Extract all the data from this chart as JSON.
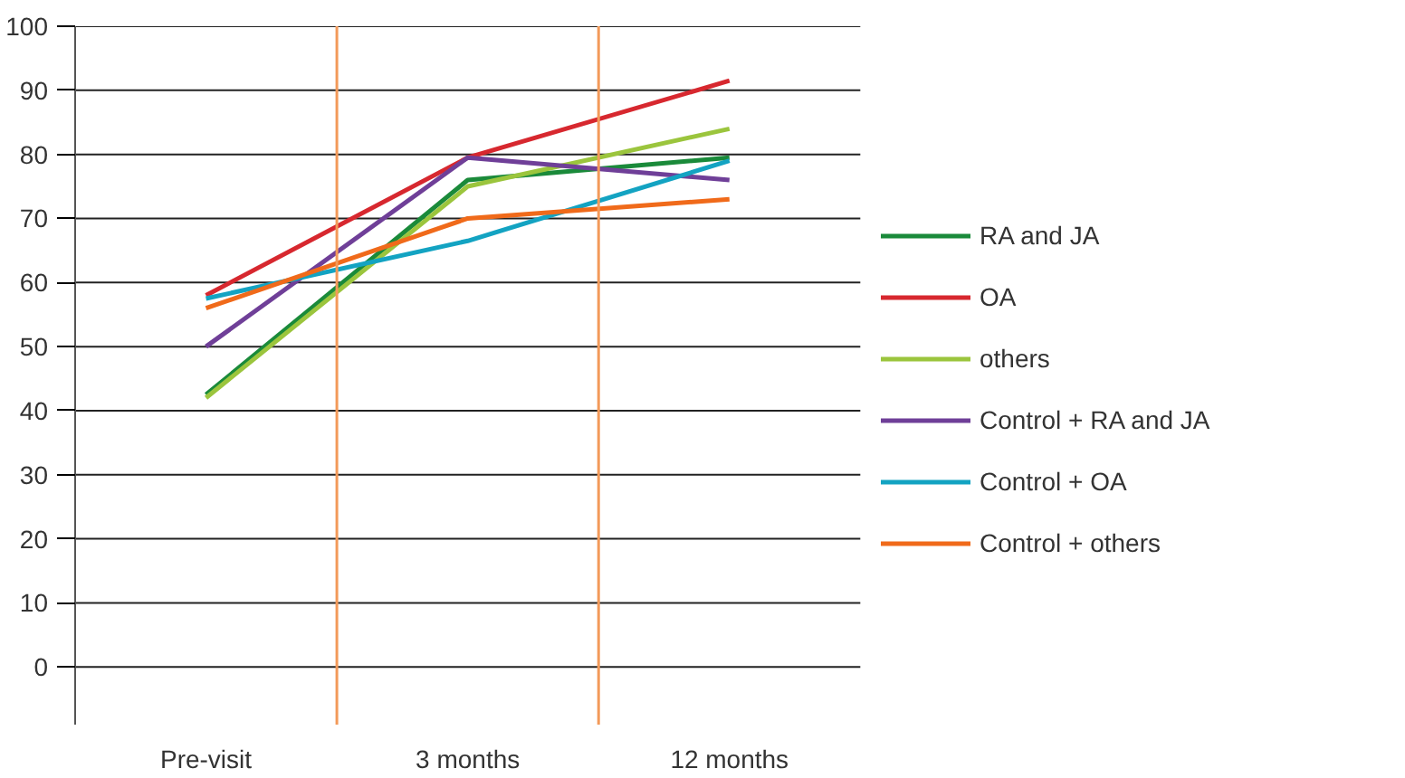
{
  "chart_data": {
    "type": "line",
    "categories": [
      "Pre-visit",
      "3 months",
      "12 months"
    ],
    "ylim": [
      -9,
      100
    ],
    "yticks": [
      0,
      10,
      20,
      30,
      40,
      50,
      60,
      70,
      80,
      90,
      100
    ],
    "grid": true,
    "legend": "right",
    "marker": "none",
    "line_style": "solid",
    "series": [
      {
        "name": "RA and JA",
        "color": "#1a8a3a",
        "values": [
          42.5,
          76,
          79.5
        ]
      },
      {
        "name": "OA",
        "color": "#d7282f",
        "values": [
          58,
          79.5,
          91.5
        ]
      },
      {
        "name": "others",
        "color": "#9bc53d",
        "values": [
          42,
          75,
          84
        ]
      },
      {
        "name": "Control + RA and JA",
        "color": "#6f3f98",
        "values": [
          50,
          79.5,
          76
        ]
      },
      {
        "name": "Control + OA",
        "color": "#13a3c2",
        "values": [
          57.5,
          66.5,
          79
        ]
      },
      {
        "name": "Control + others",
        "color": "#f06a1a",
        "values": [
          56,
          70,
          73
        ]
      }
    ]
  }
}
